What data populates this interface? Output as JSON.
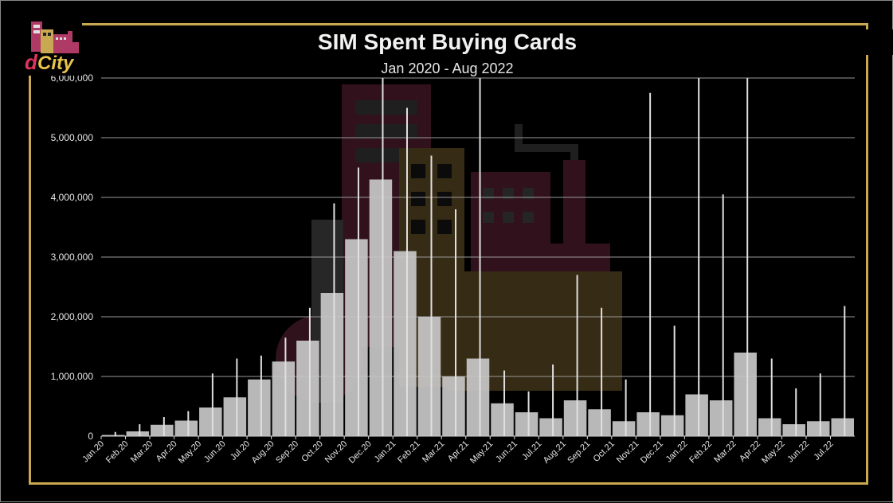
{
  "chart_data": {
    "type": "bar",
    "title": "SIM Spent Buying Cards",
    "subtitle": "Jan 2020 - Aug 2022",
    "xlabel": "",
    "ylabel": "",
    "ylim": [
      0,
      6000000
    ],
    "yticks": [
      "0",
      "1,000,000",
      "2,000,000",
      "3,000,000",
      "4,000,000",
      "5,000,000",
      "6,000,000"
    ],
    "ytick_values": [
      0,
      1000000,
      2000000,
      3000000,
      4000000,
      5000000,
      6000000
    ],
    "categories": [
      "Jan.20",
      "Feb.20",
      "Mar.20",
      "Apr.20",
      "May.20",
      "Jun.20",
      "Jul.20",
      "Aug.20",
      "Sep.20",
      "Oct.20",
      "Nov.20",
      "Dec.20",
      "Jan.21",
      "Feb.21",
      "Mar.21",
      "Apr.21",
      "May.21",
      "Jun.21",
      "Jul.21",
      "Aug.21",
      "Sep.21",
      "Oct.21",
      "Nov.21",
      "Dec.21",
      "Jan.22",
      "Feb.22",
      "Mar.22",
      "Apr.22",
      "May.22",
      "Jun.22",
      "Jul.22"
    ],
    "series": [
      {
        "values": [
          20000,
          80000,
          190000,
          260000,
          480000,
          650000,
          950000,
          1250000,
          1600000,
          2400000,
          3300000,
          4300000,
          3100000,
          2000000,
          1000000,
          1300000,
          550000,
          400000,
          300000,
          600000,
          450000,
          250000,
          400000,
          350000,
          700000,
          600000,
          1400000,
          300000,
          200000,
          250000,
          300000
        ],
        "peaks": [
          70000,
          200000,
          320000,
          420000,
          1050000,
          1300000,
          1350000,
          1650000,
          2150000,
          3900000,
          4500000,
          6000000,
          5500000,
          4700000,
          3800000,
          6000000,
          1100000,
          750000,
          1200000,
          2700000,
          2150000,
          950000,
          5750000,
          1850000,
          6000000,
          4050000,
          6000000,
          1300000,
          800000,
          1050000,
          2180000
        ]
      }
    ],
    "grid": true,
    "legend": "none",
    "colors": {
      "bars": "#c8c8c8",
      "background": "#000000",
      "frame": "#c8a951",
      "grid": "#bfbfbf",
      "text": "#f2f2f2"
    }
  },
  "watermark": {
    "text": "dCity"
  }
}
